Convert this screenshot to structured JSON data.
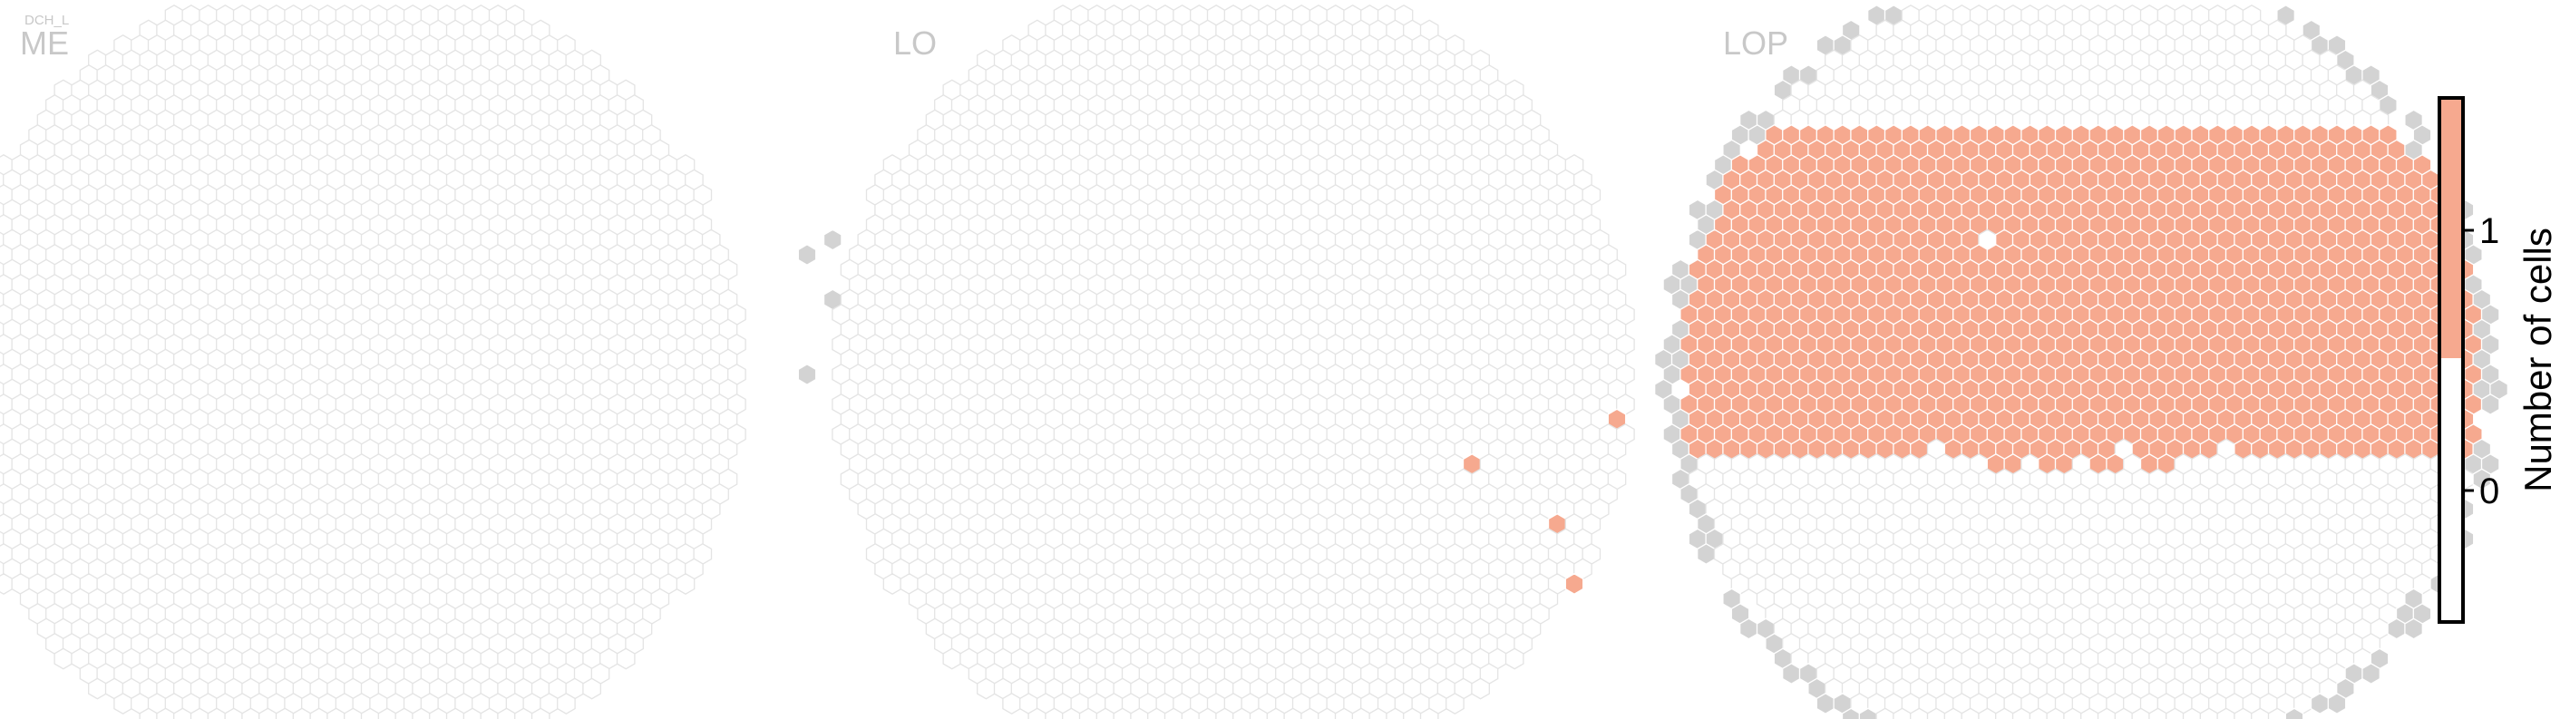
{
  "figure": {
    "super_label": "DCH_L",
    "colorbar": {
      "label": "Number of cells",
      "ticks": [
        {
          "value": 0,
          "label": "0"
        },
        {
          "value": 1,
          "label": "1"
        }
      ],
      "colors": {
        "zero": "#ffffff",
        "one": "#f6a98f",
        "border": "#000000"
      }
    },
    "colors": {
      "hex_outline": "#e4e4e4",
      "hex_filled": "#f6a98f",
      "hex_outside": "#d3d3d3",
      "panel_title": "#c8c8c8"
    }
  },
  "chart_data": [
    {
      "type": "heatmap",
      "title": "ME",
      "value_name": "Number of cells",
      "cells_with_value_1": []
    },
    {
      "type": "heatmap",
      "title": "LO",
      "value_name": "Number of cells",
      "cells_with_value_1": [
        [
          22,
          3
        ],
        [
          19,
          10
        ],
        [
          14,
          6
        ],
        [
          20,
          14
        ]
      ]
    },
    {
      "type": "heatmap",
      "title": "LOP",
      "value_name": "Number of cells",
      "cells_with_value_1": "rows -16 to +6 (upper ~60% of the hex array)"
    }
  ]
}
